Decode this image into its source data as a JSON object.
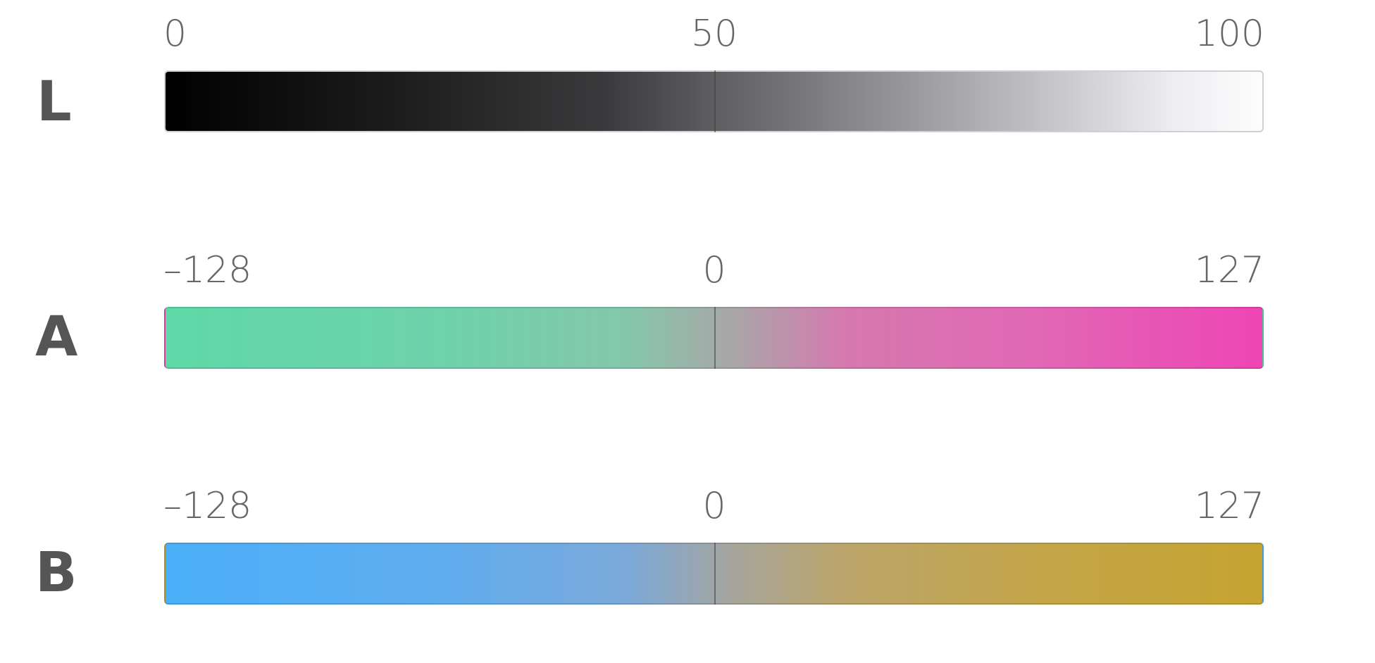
{
  "channels": [
    {
      "letter": "L",
      "min_label": "0",
      "mid_label": "50",
      "max_label": "100",
      "gradient_colors": [
        "#000000",
        "#5e5d60",
        "#fdfdfe"
      ]
    },
    {
      "letter": "A",
      "min_label": "–128",
      "mid_label": "0",
      "max_label": "127",
      "gradient_colors": [
        "#5fd8a8",
        "#aaa5a8",
        "#ee45b5"
      ]
    },
    {
      "letter": "B",
      "min_label": "–128",
      "mid_label": "0",
      "max_label": "127",
      "gradient_colors": [
        "#4aaff9",
        "#a7a59b",
        "#c6a431"
      ]
    }
  ]
}
